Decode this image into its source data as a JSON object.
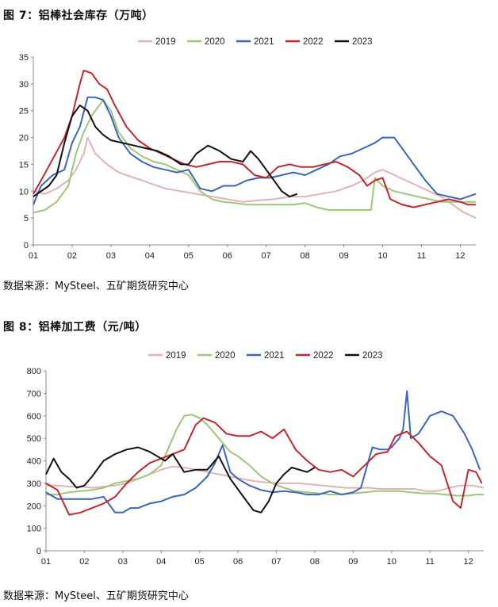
{
  "figures": [
    {
      "title": "图 7：铝棒社会库存（万吨）",
      "source": "数据来源：MySteel、五矿期货研究中心"
    },
    {
      "title": "图 8：铝棒加工费（元/吨）",
      "source": "数据来源：MySteel、五矿期货研究中心"
    }
  ],
  "chart_data": [
    {
      "type": "line",
      "title": "",
      "xlabel": "",
      "ylabel": "",
      "x_ticks": [
        "01",
        "02",
        "03",
        "04",
        "05",
        "06",
        "07",
        "08",
        "09",
        "10",
        "11",
        "12"
      ],
      "ylim": [
        0,
        35
      ],
      "y_ticks": [
        0,
        5,
        10,
        15,
        20,
        25,
        30,
        35
      ],
      "grid": false,
      "legend_position": "top",
      "series": [
        {
          "name": "2019",
          "color": "#e0b4b4",
          "x": [
            1.0,
            1.3,
            1.6,
            1.9,
            2.1,
            2.3,
            2.4,
            2.6,
            2.9,
            3.2,
            3.6,
            4.0,
            4.4,
            4.8,
            5.2,
            5.6,
            6.0,
            6.4,
            6.8,
            7.2,
            7.6,
            8.0,
            8.4,
            8.8,
            9.2,
            9.5,
            9.8,
            10.0,
            10.3,
            10.6,
            10.9,
            11.2,
            11.5,
            11.8,
            12.1,
            12.4
          ],
          "values": [
            10,
            9.5,
            10.5,
            12,
            14,
            17,
            20,
            17,
            15,
            13.5,
            12.5,
            11.5,
            10.5,
            10,
            9.5,
            9,
            8.5,
            8,
            8.3,
            8.5,
            9,
            9,
            9.5,
            10,
            11,
            12,
            13.5,
            14,
            13,
            12,
            11,
            10,
            9,
            7.5,
            6,
            5
          ]
        },
        {
          "name": "2020",
          "color": "#9dc67a",
          "x": [
            1.0,
            1.3,
            1.6,
            1.9,
            2.1,
            2.3,
            2.5,
            2.8,
            3.0,
            3.2,
            3.5,
            3.8,
            4.1,
            4.4,
            4.7,
            5.0,
            5.3,
            5.6,
            5.9,
            6.2,
            6.5,
            6.8,
            7.1,
            7.4,
            7.7,
            8.0,
            8.3,
            8.6,
            8.9,
            9.2,
            9.5,
            9.7,
            9.8,
            10.0,
            10.3,
            10.6,
            10.9,
            11.2,
            11.5,
            11.8,
            12.1,
            12.4
          ],
          "values": [
            6,
            6.5,
            8,
            11,
            17,
            21,
            24,
            27,
            25,
            21,
            18,
            16.5,
            15.5,
            15,
            14,
            13,
            10,
            8.5,
            8,
            7.8,
            7.5,
            7.5,
            7.5,
            7.5,
            7.5,
            7.8,
            7,
            6.5,
            6.5,
            6.5,
            6.5,
            6.5,
            12.5,
            11,
            10,
            9.5,
            9,
            8.5,
            8,
            8,
            8,
            8
          ]
        },
        {
          "name": "2021",
          "color": "#3b66b8",
          "x": [
            1.0,
            1.2,
            1.5,
            1.8,
            2.0,
            2.2,
            2.4,
            2.6,
            2.8,
            3.0,
            3.2,
            3.5,
            3.8,
            4.1,
            4.4,
            4.7,
            5.0,
            5.3,
            5.6,
            5.9,
            6.2,
            6.5,
            6.8,
            7.1,
            7.4,
            7.7,
            8.0,
            8.3,
            8.6,
            8.9,
            9.2,
            9.5,
            9.8,
            10.0,
            10.3,
            10.5,
            10.8,
            11.1,
            11.4,
            11.7,
            12.0,
            12.2,
            12.4
          ],
          "values": [
            7.5,
            11,
            13,
            14,
            19,
            22,
            27.5,
            27.5,
            27,
            24,
            20,
            17,
            15.5,
            14.5,
            14,
            13.5,
            14,
            10.5,
            10,
            11,
            11,
            12,
            12.5,
            12.5,
            13,
            13.5,
            13,
            14,
            15,
            16.5,
            17,
            18,
            19,
            20,
            20,
            18,
            15,
            12,
            9.5,
            9,
            8.5,
            9,
            9.5
          ]
        },
        {
          "name": "2022",
          "color": "#c0282d",
          "x": [
            1.0,
            1.2,
            1.5,
            1.8,
            2.0,
            2.2,
            2.3,
            2.5,
            2.7,
            2.9,
            3.1,
            3.4,
            3.7,
            4.0,
            4.3,
            4.6,
            4.9,
            5.2,
            5.5,
            5.8,
            6.1,
            6.4,
            6.7,
            7.0,
            7.3,
            7.6,
            7.9,
            8.2,
            8.5,
            8.8,
            9.1,
            9.4,
            9.6,
            9.8,
            10.0,
            10.2,
            10.5,
            10.8,
            11.1,
            11.4,
            11.7,
            12.0,
            12.2,
            12.4
          ],
          "values": [
            9.5,
            12,
            16,
            20,
            24,
            30,
            32.5,
            32,
            30,
            29,
            26,
            22,
            19.5,
            18,
            17,
            16,
            15,
            14.5,
            15,
            15.5,
            15.5,
            15,
            13,
            12.5,
            14.5,
            15,
            14.5,
            14.5,
            15,
            15.5,
            14.5,
            13,
            11,
            12,
            12.5,
            8.5,
            7.5,
            7,
            7.5,
            8,
            8.5,
            8,
            7.5,
            7.5
          ]
        },
        {
          "name": "2023",
          "color": "#111111",
          "x": [
            1.0,
            1.2,
            1.4,
            1.6,
            1.8,
            2.0,
            2.2,
            2.4,
            2.6,
            2.8,
            3.0,
            3.3,
            3.6,
            3.9,
            4.2,
            4.5,
            4.8,
            5.0,
            5.2,
            5.5,
            5.8,
            6.1,
            6.4,
            6.6,
            6.8,
            7.0,
            7.2,
            7.4,
            7.6,
            7.8
          ],
          "values": [
            9,
            10,
            11,
            13,
            19,
            24,
            26,
            25,
            22,
            20.5,
            19.5,
            19,
            18.5,
            18,
            17.5,
            16.5,
            15,
            15,
            17,
            18.5,
            17.5,
            16,
            15.5,
            17.5,
            16,
            14,
            12,
            10,
            9,
            9.5
          ]
        }
      ]
    },
    {
      "type": "line",
      "title": "",
      "xlabel": "",
      "ylabel": "",
      "x_ticks": [
        "01",
        "02",
        "03",
        "04",
        "05",
        "06",
        "07",
        "08",
        "09",
        "10",
        "11",
        "12"
      ],
      "ylim": [
        0,
        800
      ],
      "y_ticks": [
        0,
        100,
        200,
        300,
        400,
        500,
        600,
        700,
        800
      ],
      "grid": false,
      "legend_position": "top",
      "series": [
        {
          "name": "2019",
          "color": "#e0b4b4",
          "x": [
            1.0,
            1.3,
            1.6,
            1.9,
            2.2,
            2.5,
            2.8,
            3.1,
            3.4,
            3.7,
            4.0,
            4.3,
            4.6,
            4.9,
            5.2,
            5.5,
            5.8,
            6.1,
            6.4,
            6.7,
            7.0,
            7.3,
            7.6,
            7.9,
            8.2,
            8.5,
            8.8,
            9.1,
            9.4,
            9.7,
            10.0,
            10.3,
            10.6,
            10.9,
            11.2,
            11.5,
            11.8,
            12.1,
            12.4
          ],
          "values": [
            290,
            290,
            285,
            285,
            280,
            285,
            290,
            300,
            320,
            340,
            360,
            375,
            370,
            360,
            350,
            340,
            330,
            320,
            310,
            305,
            300,
            300,
            300,
            295,
            290,
            285,
            280,
            280,
            280,
            275,
            275,
            275,
            275,
            265,
            265,
            280,
            290,
            290,
            280
          ]
        },
        {
          "name": "2020",
          "color": "#9dc67a",
          "x": [
            1.0,
            1.3,
            1.6,
            1.9,
            2.2,
            2.5,
            2.8,
            3.1,
            3.4,
            3.7,
            4.0,
            4.2,
            4.4,
            4.6,
            4.8,
            5.0,
            5.2,
            5.4,
            5.6,
            5.8,
            6.0,
            6.3,
            6.6,
            6.9,
            7.2,
            7.5,
            7.8,
            8.1,
            8.4,
            8.7,
            9.0,
            9.3,
            9.6,
            9.9,
            10.2,
            10.5,
            10.8,
            11.1,
            11.4,
            11.7,
            12.0,
            12.2,
            12.4
          ],
          "values": [
            250,
            250,
            260,
            265,
            270,
            280,
            300,
            310,
            320,
            340,
            380,
            460,
            540,
            600,
            605,
            590,
            560,
            520,
            480,
            440,
            420,
            380,
            330,
            300,
            280,
            265,
            260,
            255,
            250,
            250,
            255,
            260,
            265,
            265,
            265,
            260,
            255,
            255,
            250,
            245,
            245,
            250,
            250
          ]
        },
        {
          "name": "2021",
          "color": "#3b66b8",
          "x": [
            1.0,
            1.3,
            1.6,
            1.9,
            2.2,
            2.5,
            2.8,
            3.0,
            3.2,
            3.4,
            3.7,
            4.0,
            4.3,
            4.6,
            4.9,
            5.2,
            5.4,
            5.6,
            5.8,
            6.0,
            6.3,
            6.6,
            6.9,
            7.2,
            7.5,
            7.8,
            8.1,
            8.4,
            8.7,
            9.0,
            9.2,
            9.4,
            9.5,
            9.7,
            9.9,
            10.0,
            10.2,
            10.3,
            10.4,
            10.5,
            10.7,
            11.0,
            11.3,
            11.6,
            11.9,
            12.1,
            12.3
          ],
          "values": [
            260,
            230,
            230,
            230,
            230,
            240,
            170,
            170,
            190,
            190,
            210,
            220,
            240,
            250,
            280,
            330,
            390,
            470,
            350,
            320,
            290,
            270,
            260,
            265,
            260,
            250,
            250,
            265,
            250,
            260,
            280,
            400,
            460,
            450,
            450,
            460,
            500,
            540,
            710,
            500,
            520,
            600,
            620,
            600,
            520,
            450,
            360
          ]
        },
        {
          "name": "2022",
          "color": "#c0282d",
          "x": [
            1.0,
            1.3,
            1.6,
            1.9,
            2.2,
            2.5,
            2.8,
            3.1,
            3.4,
            3.7,
            4.0,
            4.3,
            4.6,
            4.9,
            5.1,
            5.4,
            5.7,
            6.0,
            6.3,
            6.6,
            6.9,
            7.2,
            7.5,
            7.8,
            8.1,
            8.4,
            8.7,
            9.0,
            9.3,
            9.6,
            9.9,
            10.1,
            10.4,
            10.7,
            11.0,
            11.3,
            11.6,
            11.8,
            12.0,
            12.2,
            12.35
          ],
          "values": [
            300,
            270,
            160,
            170,
            190,
            210,
            240,
            300,
            350,
            390,
            410,
            430,
            450,
            560,
            590,
            570,
            520,
            510,
            510,
            530,
            500,
            540,
            450,
            400,
            360,
            350,
            360,
            330,
            380,
            430,
            440,
            510,
            530,
            480,
            420,
            380,
            220,
            190,
            360,
            350,
            300
          ]
        },
        {
          "name": "2023",
          "color": "#111111",
          "x": [
            1.0,
            1.2,
            1.4,
            1.6,
            1.8,
            2.0,
            2.2,
            2.5,
            2.8,
            3.1,
            3.4,
            3.7,
            3.9,
            4.1,
            4.3,
            4.6,
            4.9,
            5.2,
            5.5,
            5.8,
            6.1,
            6.4,
            6.6,
            6.8,
            7.0,
            7.2,
            7.4,
            7.6,
            7.8,
            8.0
          ],
          "values": [
            340,
            410,
            350,
            320,
            280,
            290,
            330,
            400,
            430,
            450,
            460,
            440,
            420,
            400,
            430,
            350,
            360,
            360,
            420,
            320,
            250,
            180,
            170,
            220,
            300,
            340,
            370,
            360,
            350,
            370
          ]
        }
      ]
    }
  ]
}
